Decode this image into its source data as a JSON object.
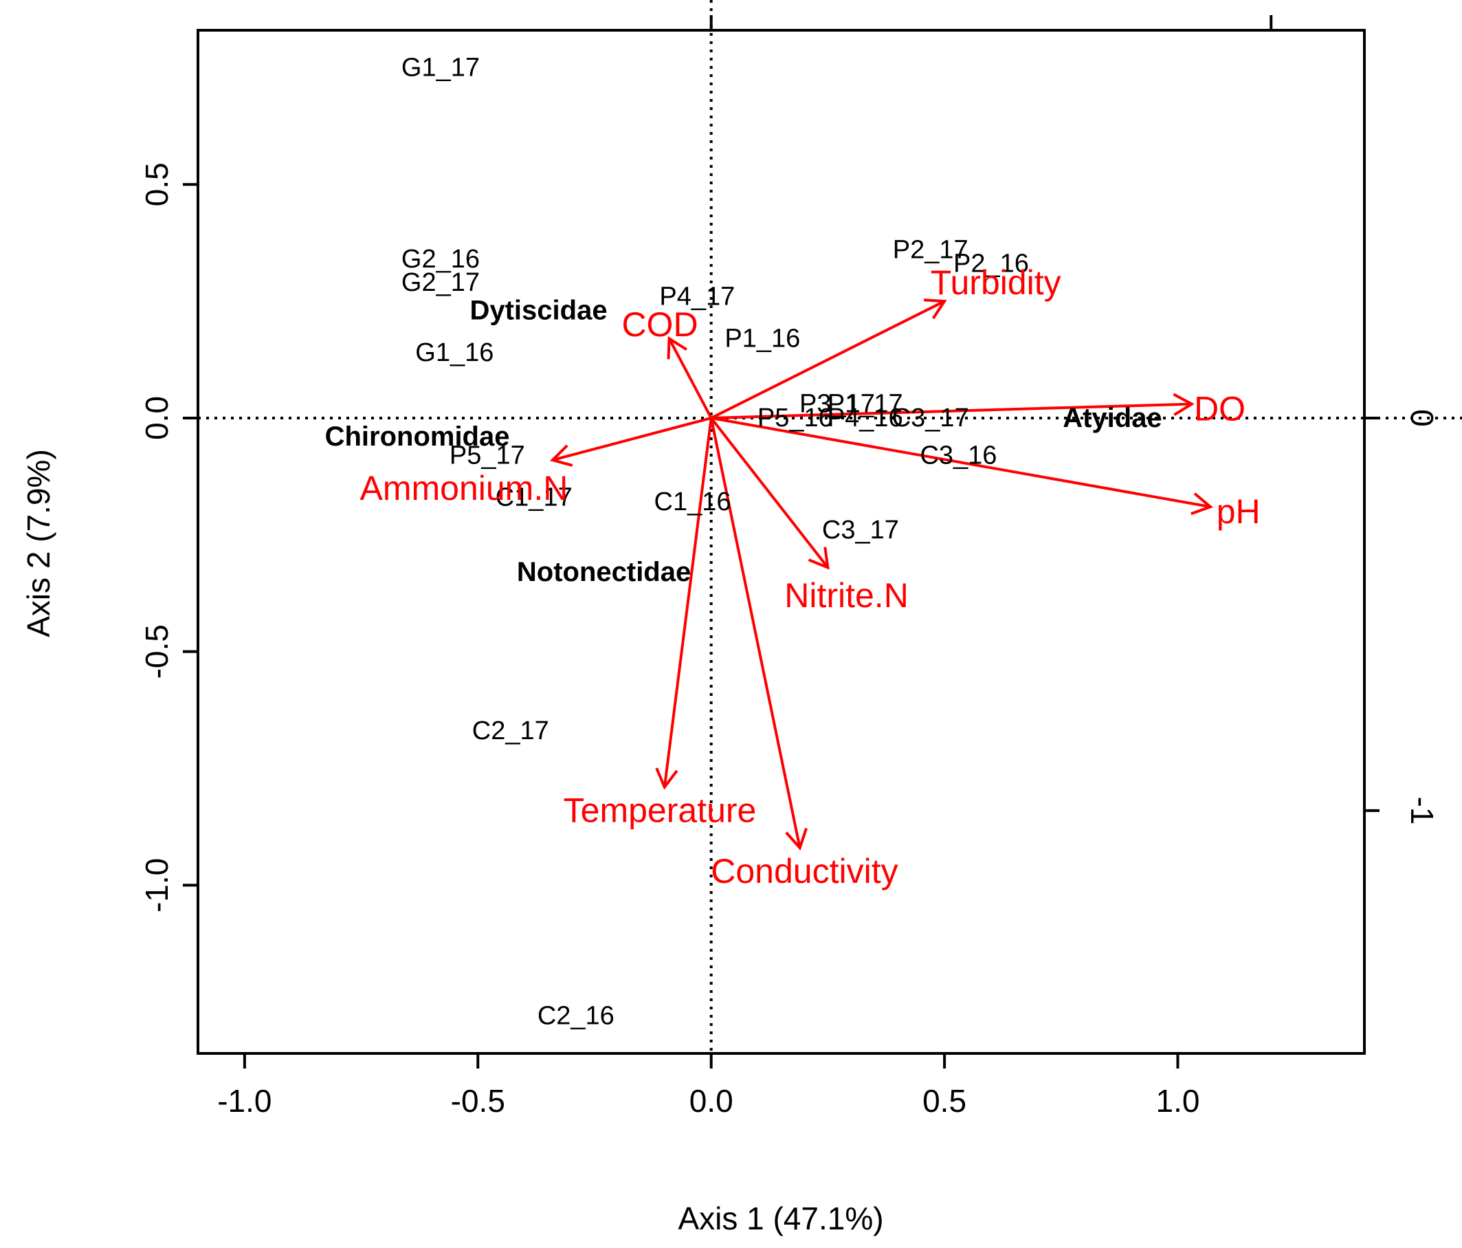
{
  "chart_data": {
    "type": "scatter",
    "subtype": "cca-biplot",
    "xlabel": "Axis 1 (47.1%)",
    "ylabel": "Axis 2 (7.9%)",
    "xlim": [
      -1.1,
      1.4
    ],
    "ylim": [
      -1.36,
      0.83
    ],
    "x_ticks": [
      {
        "value": -1.0,
        "label": "-1.0"
      },
      {
        "value": -0.5,
        "label": "-0.5"
      },
      {
        "value": 0.0,
        "label": "0.0"
      },
      {
        "value": 0.5,
        "label": "0.5"
      },
      {
        "value": 1.0,
        "label": "1.0"
      }
    ],
    "y_ticks": [
      {
        "value": -1.0,
        "label": "-1.0"
      },
      {
        "value": -0.5,
        "label": "-0.5"
      },
      {
        "value": 0.0,
        "label": "0.0"
      },
      {
        "value": 0.5,
        "label": "0.5"
      }
    ],
    "right_axis": {
      "scale_factor": 1.19,
      "ticks": [
        {
          "value": 0,
          "label": "0"
        },
        {
          "value": -1,
          "label": "-1"
        }
      ]
    },
    "top_axis_ticks": [
      0.0,
      1.2
    ],
    "reference_lines": {
      "x": 0,
      "y": 0,
      "style": "dotted"
    },
    "sites": [
      {
        "label": "G1_17",
        "x": -0.58,
        "y": 0.75
      },
      {
        "label": "G2_16",
        "x": -0.58,
        "y": 0.34
      },
      {
        "label": "G2_17",
        "x": -0.58,
        "y": 0.29
      },
      {
        "label": "G1_16",
        "x": -0.55,
        "y": 0.14
      },
      {
        "label": "P4_17",
        "x": -0.03,
        "y": 0.26
      },
      {
        "label": "P1_16",
        "x": 0.11,
        "y": 0.17
      },
      {
        "label": "P2_17",
        "x": 0.47,
        "y": 0.36
      },
      {
        "label": "P2_16",
        "x": 0.6,
        "y": 0.33
      },
      {
        "label": "P3_17",
        "x": 0.27,
        "y": 0.03
      },
      {
        "label": "P1_17",
        "x": 0.33,
        "y": 0.03
      },
      {
        "label": "P5_16",
        "x": 0.18,
        "y": 0.0
      },
      {
        "label": "P4_16",
        "x": 0.33,
        "y": 0.0
      },
      {
        "label": "C3_17",
        "x": 0.47,
        "y": 0.0
      },
      {
        "label": "C3_16",
        "x": 0.53,
        "y": -0.08
      },
      {
        "label": "P5_17",
        "x": -0.48,
        "y": -0.08
      },
      {
        "label": "C1_17",
        "x": -0.38,
        "y": -0.17
      },
      {
        "label": "C1_16",
        "x": -0.04,
        "y": -0.18
      },
      {
        "label": "C3_17",
        "x": 0.32,
        "y": -0.24
      },
      {
        "label": "C2_17",
        "x": -0.43,
        "y": -0.67
      },
      {
        "label": "C2_16",
        "x": -0.29,
        "y": -1.28
      }
    ],
    "taxa": [
      {
        "label": "Dytiscidae",
        "x": -0.37,
        "y": 0.23
      },
      {
        "label": "Chironomidae",
        "x": -0.63,
        "y": -0.04
      },
      {
        "label": "Notonectidae",
        "x": -0.23,
        "y": -0.33
      },
      {
        "label": "Atyidae",
        "x": 0.86,
        "y": 0.0
      }
    ],
    "env_vectors": [
      {
        "label": "Turbidity",
        "x": 0.5,
        "y": 0.25,
        "label_x": 0.61,
        "label_y": 0.29
      },
      {
        "label": "COD",
        "x": -0.09,
        "y": 0.17,
        "label_x": -0.11,
        "label_y": 0.2
      },
      {
        "label": "DO",
        "x": 1.03,
        "y": 0.03,
        "label_x": 1.09,
        "label_y": 0.02
      },
      {
        "label": "pH",
        "x": 1.07,
        "y": -0.19,
        "label_x": 1.13,
        "label_y": -0.2
      },
      {
        "label": "Ammonium.N",
        "x": -0.34,
        "y": -0.09,
        "label_x": -0.53,
        "label_y": -0.15
      },
      {
        "label": "Nitrite.N",
        "x": 0.25,
        "y": -0.32,
        "label_x": 0.29,
        "label_y": -0.38
      },
      {
        "label": "Temperature",
        "x": -0.1,
        "y": -0.79,
        "label_x": -0.11,
        "label_y": -0.84
      },
      {
        "label": "Conductivity",
        "x": 0.19,
        "y": -0.92,
        "label_x": 0.2,
        "label_y": -0.97
      }
    ],
    "colors": {
      "vectors": "#ff0000",
      "points": "#000000"
    }
  }
}
